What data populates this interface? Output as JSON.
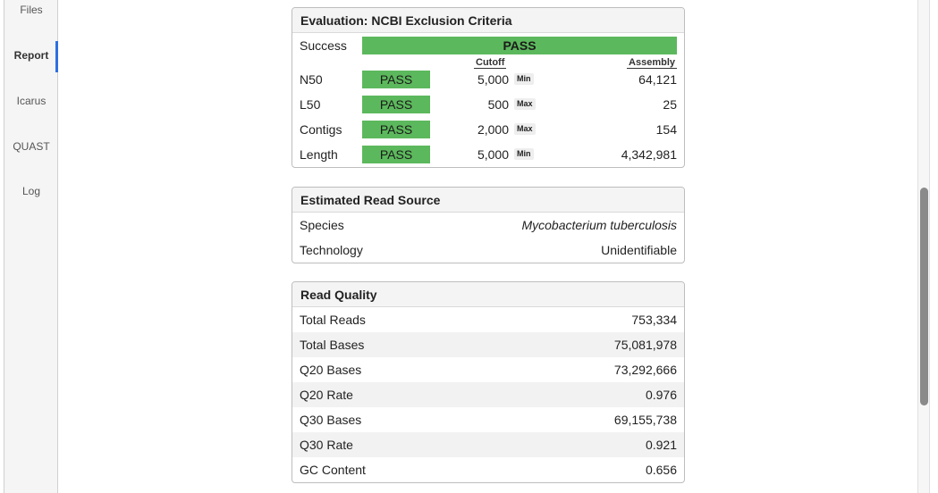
{
  "sidebar": {
    "items": [
      {
        "label": "Files"
      },
      {
        "label": "Report"
      },
      {
        "label": "Icarus"
      },
      {
        "label": "QUAST"
      },
      {
        "label": "Log"
      }
    ],
    "active": "Report"
  },
  "evaluation": {
    "title": "Evaluation: NCBI Exclusion Criteria",
    "success_label": "Success",
    "success_value": "PASS",
    "cutoff_header": "Cutoff",
    "assembly_header": "Assembly",
    "rows": [
      {
        "metric": "N50",
        "status": "PASS",
        "cutoff": "5,000",
        "type": "Min",
        "assembly": "64,121"
      },
      {
        "metric": "L50",
        "status": "PASS",
        "cutoff": "500",
        "type": "Max",
        "assembly": "25"
      },
      {
        "metric": "Contigs",
        "status": "PASS",
        "cutoff": "2,000",
        "type": "Max",
        "assembly": "154"
      },
      {
        "metric": "Length",
        "status": "PASS",
        "cutoff": "5,000",
        "type": "Min",
        "assembly": "4,342,981"
      }
    ],
    "pass_color": "#5cb85c"
  },
  "read_source": {
    "title": "Estimated Read Source",
    "rows": [
      {
        "label": "Species",
        "value": "Mycobacterium tuberculosis"
      },
      {
        "label": "Technology",
        "value": "Unidentifiable"
      }
    ]
  },
  "read_quality": {
    "title": "Read Quality",
    "rows": [
      {
        "label": "Total Reads",
        "value": "753,334"
      },
      {
        "label": "Total Bases",
        "value": "75,081,978"
      },
      {
        "label": "Q20 Bases",
        "value": "73,292,666"
      },
      {
        "label": "Q20 Rate",
        "value": "0.976"
      },
      {
        "label": "Q30 Bases",
        "value": "69,155,738"
      },
      {
        "label": "Q30 Rate",
        "value": "0.921"
      },
      {
        "label": "GC Content",
        "value": "0.656"
      }
    ]
  },
  "colors": {
    "accent": "#2f6fe0",
    "pass": "#5cb85c"
  }
}
